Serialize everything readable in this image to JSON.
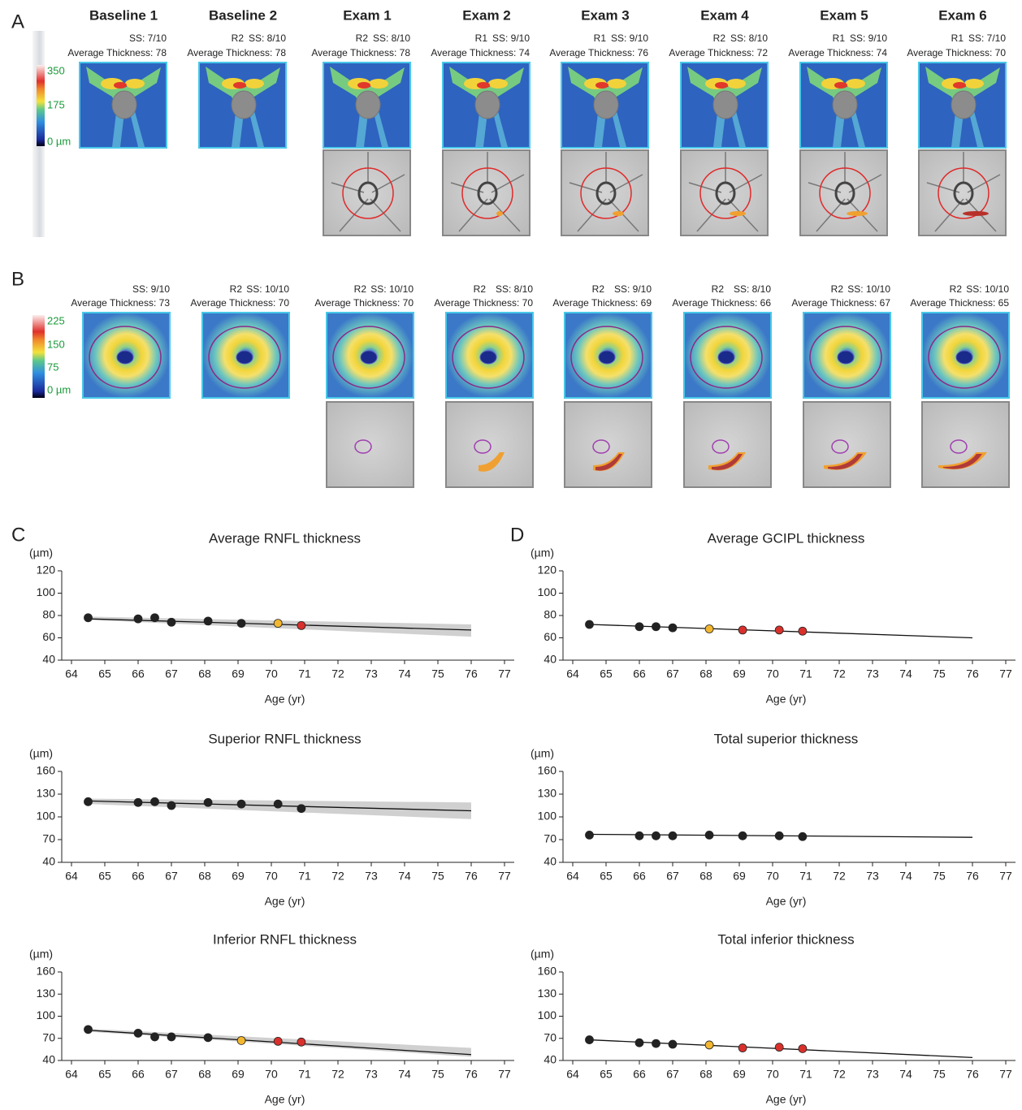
{
  "panel_labels": [
    "A",
    "B",
    "C",
    "D"
  ],
  "panel_a": {
    "scale": [
      "350",
      "175",
      "0 µm"
    ],
    "exams": [
      {
        "header": "Baseline 1",
        "ss": "SS: 7/10",
        "thickness": "Average Thickness: 78"
      },
      {
        "header": "Baseline 2",
        "registration": "R2",
        "ss": "SS: 8/10",
        "thickness": "Average Thickness: 78"
      },
      {
        "header": "Exam 1",
        "registration": "R2",
        "ss": "SS: 8/10",
        "thickness": "Average Thickness: 78"
      },
      {
        "header": "Exam 2",
        "registration": "R1",
        "ss": "SS: 9/10",
        "thickness": "Average Thickness: 74"
      },
      {
        "header": "Exam 3",
        "registration": "R1",
        "ss": "SS: 9/10",
        "thickness": "Average Thickness: 76"
      },
      {
        "header": "Exam 4",
        "registration": "R2",
        "ss": "SS: 8/10",
        "thickness": "Average Thickness: 72"
      },
      {
        "header": "Exam 5",
        "registration": "R1",
        "ss": "SS: 9/10",
        "thickness": "Average Thickness: 74"
      },
      {
        "header": "Exam 6",
        "registration": "R1",
        "ss": "SS: 7/10",
        "thickness": "Average Thickness: 70"
      }
    ]
  },
  "panel_b": {
    "scale": [
      "225",
      "150",
      "75",
      "0 µm"
    ],
    "exams": [
      {
        "ss": "SS: 9/10",
        "thickness": "Average Thickness: 73"
      },
      {
        "registration": "R2",
        "ss": "SS: 10/10",
        "thickness": "Average Thickness: 70"
      },
      {
        "registration": "R2",
        "ss": "SS: 10/10",
        "thickness": "Average Thickness: 70"
      },
      {
        "registration": "R2",
        "ss": "SS: 8/10",
        "thickness": "Average Thickness: 70"
      },
      {
        "registration": "R2",
        "ss": "SS: 9/10",
        "thickness": "Average Thickness: 69"
      },
      {
        "registration": "R2",
        "ss": "SS: 8/10",
        "thickness": "Average Thickness: 66"
      },
      {
        "registration": "R2",
        "ss": "SS: 10/10",
        "thickness": "Average Thickness: 67"
      },
      {
        "registration": "R2",
        "ss": "SS: 10/10",
        "thickness": "Average Thickness: 65"
      }
    ]
  },
  "chart_data": [
    {
      "type": "scatter",
      "title": "Average RNFL thickness",
      "y_label": "(µm)",
      "x_label": "Age (yr)",
      "x": [
        64.5,
        66,
        66.5,
        67,
        68.1,
        69.1,
        70.2,
        70.9
      ],
      "values": [
        78,
        77,
        78,
        74,
        75,
        73,
        73,
        71
      ],
      "colors": [
        "#222222",
        "#222222",
        "#222222",
        "#222222",
        "#222222",
        "#222222",
        "#f2b630",
        "#d9302c"
      ],
      "trend": {
        "x": [
          64.5,
          76
        ],
        "values": [
          77,
          67
        ]
      },
      "band": {
        "x": [
          64.5,
          76
        ],
        "lower": [
          76,
          61
        ],
        "upper": [
          79,
          72
        ]
      },
      "xlim": [
        64,
        77
      ],
      "xticks": [
        64,
        65,
        66,
        67,
        68,
        69,
        70,
        71,
        72,
        73,
        74,
        75,
        76,
        77
      ],
      "ylim": [
        40,
        120
      ],
      "yticks": [
        40,
        60,
        80,
        100,
        120
      ]
    },
    {
      "type": "scatter",
      "title": "Superior RNFL thickness",
      "y_label": "(µm)",
      "x_label": "Age (yr)",
      "x": [
        64.5,
        66,
        66.5,
        67,
        68.1,
        69.1,
        70.2,
        70.9
      ],
      "values": [
        120,
        119,
        120,
        115,
        119,
        117,
        117,
        111
      ],
      "colors": [
        "#222222",
        "#222222",
        "#222222",
        "#222222",
        "#222222",
        "#222222",
        "#222222",
        "#222222"
      ],
      "trend": {
        "x": [
          64.5,
          76
        ],
        "values": [
          121,
          108
        ]
      },
      "band": {
        "x": [
          64.5,
          76
        ],
        "lower": [
          117,
          97
        ],
        "upper": [
          124,
          119
        ]
      },
      "xlim": [
        64,
        77
      ],
      "xticks": [
        64,
        65,
        66,
        67,
        68,
        69,
        70,
        71,
        72,
        73,
        74,
        75,
        76,
        77
      ],
      "ylim": [
        40,
        160
      ],
      "yticks": [
        40,
        70,
        100,
        130,
        160
      ]
    },
    {
      "type": "scatter",
      "title": "Inferior RNFL thickness",
      "y_label": "(µm)",
      "x_label": "Age (yr)",
      "x": [
        64.5,
        66,
        66.5,
        67,
        68.1,
        69.1,
        70.2,
        70.9
      ],
      "values": [
        82,
        77,
        72,
        72,
        71,
        67,
        66,
        65
      ],
      "colors": [
        "#222222",
        "#222222",
        "#222222",
        "#222222",
        "#222222",
        "#f2b630",
        "#d9302c",
        "#d9302c"
      ],
      "trend": {
        "x": [
          64.5,
          76
        ],
        "values": [
          81,
          48
        ]
      },
      "band": {
        "x": [
          64.5,
          76
        ],
        "lower": [
          79,
          45
        ],
        "upper": [
          83,
          57
        ]
      },
      "xlim": [
        64,
        77
      ],
      "xticks": [
        64,
        65,
        66,
        67,
        68,
        69,
        70,
        71,
        72,
        73,
        74,
        75,
        76,
        77
      ],
      "ylim": [
        40,
        160
      ],
      "yticks": [
        40,
        70,
        100,
        130,
        160
      ]
    },
    {
      "type": "scatter",
      "title": "Average GCIPL thickness",
      "y_label": "(µm)",
      "x_label": "Age (yr)",
      "x": [
        64.5,
        66,
        66.5,
        67,
        68.1,
        69.1,
        70.2,
        70.9
      ],
      "values": [
        72,
        70,
        70,
        69,
        68,
        67,
        67,
        66
      ],
      "colors": [
        "#222222",
        "#222222",
        "#222222",
        "#222222",
        "#f2b630",
        "#d9302c",
        "#d9302c",
        "#d9302c"
      ],
      "trend": {
        "x": [
          64.5,
          76
        ],
        "values": [
          72,
          60
        ]
      },
      "xlim": [
        64,
        77
      ],
      "xticks": [
        64,
        65,
        66,
        67,
        68,
        69,
        70,
        71,
        72,
        73,
        74,
        75,
        76,
        77
      ],
      "ylim": [
        40,
        120
      ],
      "yticks": [
        40,
        60,
        80,
        100,
        120
      ]
    },
    {
      "type": "scatter",
      "title": "Total superior thickness",
      "y_label": "(µm)",
      "x_label": "Age (yr)",
      "x": [
        64.5,
        66,
        66.5,
        67,
        68.1,
        69.1,
        70.2,
        70.9
      ],
      "values": [
        76,
        75,
        75,
        75,
        76,
        75,
        75,
        74
      ],
      "colors": [
        "#222222",
        "#222222",
        "#222222",
        "#222222",
        "#222222",
        "#222222",
        "#222222",
        "#222222"
      ],
      "trend": {
        "x": [
          64.5,
          76
        ],
        "values": [
          77,
          73
        ]
      },
      "xlim": [
        64,
        77
      ],
      "xticks": [
        64,
        65,
        66,
        67,
        68,
        69,
        70,
        71,
        72,
        73,
        74,
        75,
        76,
        77
      ],
      "ylim": [
        40,
        160
      ],
      "yticks": [
        40,
        70,
        100,
        130,
        160
      ]
    },
    {
      "type": "scatter",
      "title": "Total inferior thickness",
      "y_label": "(µm)",
      "x_label": "Age (yr)",
      "x": [
        64.5,
        66,
        66.5,
        67,
        68.1,
        69.1,
        70.2,
        70.9
      ],
      "values": [
        68,
        64,
        63,
        62,
        61,
        57,
        58,
        56
      ],
      "colors": [
        "#222222",
        "#222222",
        "#222222",
        "#222222",
        "#f2b630",
        "#d9302c",
        "#d9302c",
        "#d9302c"
      ],
      "trend": {
        "x": [
          64.5,
          76
        ],
        "values": [
          68,
          44
        ]
      },
      "xlim": [
        64,
        77
      ],
      "xticks": [
        64,
        65,
        66,
        67,
        68,
        69,
        70,
        71,
        72,
        73,
        74,
        75,
        76,
        77
      ],
      "ylim": [
        40,
        160
      ],
      "yticks": [
        40,
        70,
        100,
        130,
        160
      ]
    }
  ]
}
